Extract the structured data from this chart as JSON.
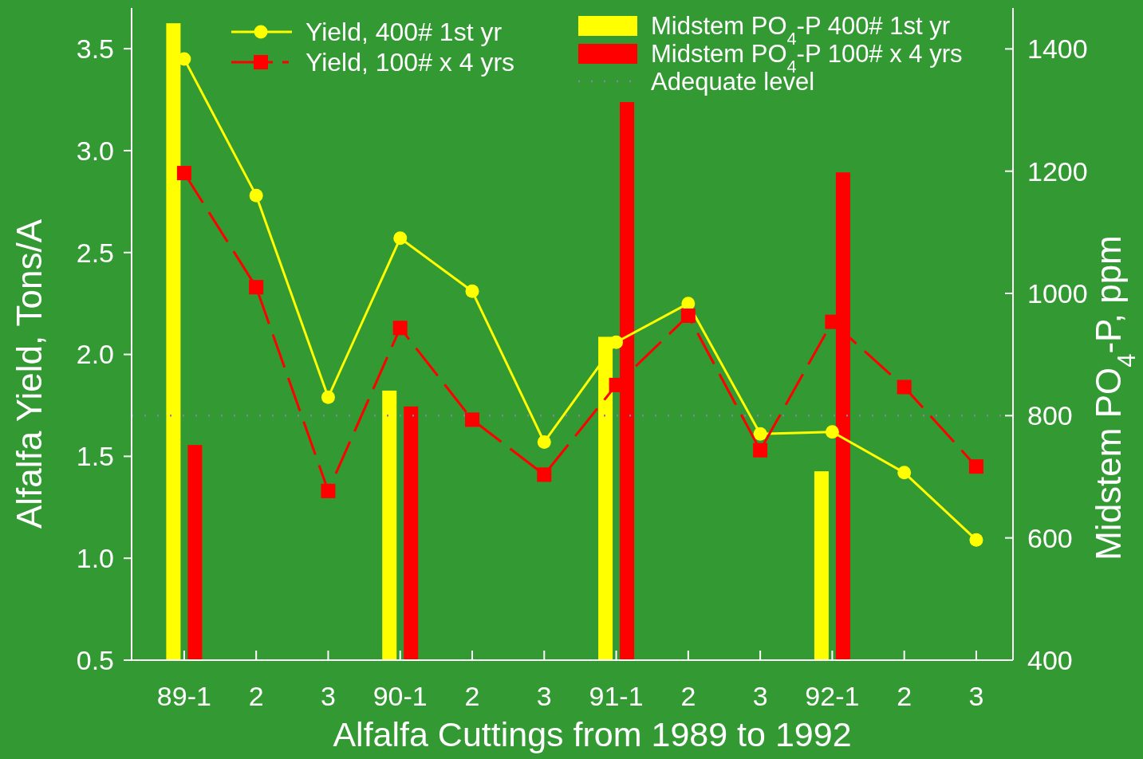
{
  "chart_data": {
    "type": "bar",
    "xlabel": "Alfalfa Cuttings from 1989 to 1992",
    "ylabel": "Alfalfa Yield, Tons/A",
    "y2label": "Midstem PO$_{4}$-P, ppm",
    "categories": [
      "89-1",
      "2",
      "3",
      "90-1",
      "2",
      "3",
      "91-1",
      "2",
      "3",
      "92-1",
      "2",
      "3"
    ],
    "series": [
      {
        "name": "Yield, 400# 1st yr",
        "type": "line",
        "color": "#ffff00",
        "marker": "circle",
        "line_style": "solid",
        "values": [
          3.45,
          2.78,
          1.79,
          2.57,
          2.31,
          1.57,
          2.06,
          2.25,
          1.61,
          1.62,
          1.42,
          1.09
        ]
      },
      {
        "name": "Yield, 100# x 4 yrs",
        "type": "line",
        "color": "#ff0000",
        "marker": "square",
        "line_style": "dashed",
        "values": [
          2.89,
          2.33,
          1.33,
          2.13,
          1.68,
          1.41,
          1.85,
          2.19,
          1.53,
          2.16,
          1.84,
          1.45
        ]
      },
      {
        "name": "Midstem PO$_{4}$-P 400# 1st yr",
        "axis": "y2",
        "color": "#ffff00",
        "values": [
          1442,
          null,
          null,
          841,
          null,
          null,
          929,
          null,
          null,
          709,
          null,
          null
        ]
      },
      {
        "name": "Midstem PO$_{4}$-P 100# x 4 yrs",
        "axis": "y2",
        "color": "#ff0000",
        "values": [
          752,
          null,
          null,
          815,
          null,
          null,
          1313,
          null,
          null,
          1198,
          null,
          null
        ]
      }
    ],
    "ref_lines": [
      {
        "axis": "y2",
        "value": 800,
        "label": "Adequate level",
        "color": "#8a7fa8",
        "line_style": "dotted"
      }
    ],
    "ylim": [
      0.5,
      3.7
    ],
    "yticks": [
      0.5,
      {
        "value": 1,
        "label": "1.0"
      },
      1.5,
      {
        "value": 2,
        "label": "2.0"
      },
      2.5,
      {
        "value": 3,
        "label": "3.0"
      },
      3.5
    ],
    "y2lim": [
      400,
      1467
    ],
    "y2ticks": [
      400,
      600,
      800,
      1000,
      1200,
      1400
    ],
    "legend": "top",
    "grid": false
  }
}
